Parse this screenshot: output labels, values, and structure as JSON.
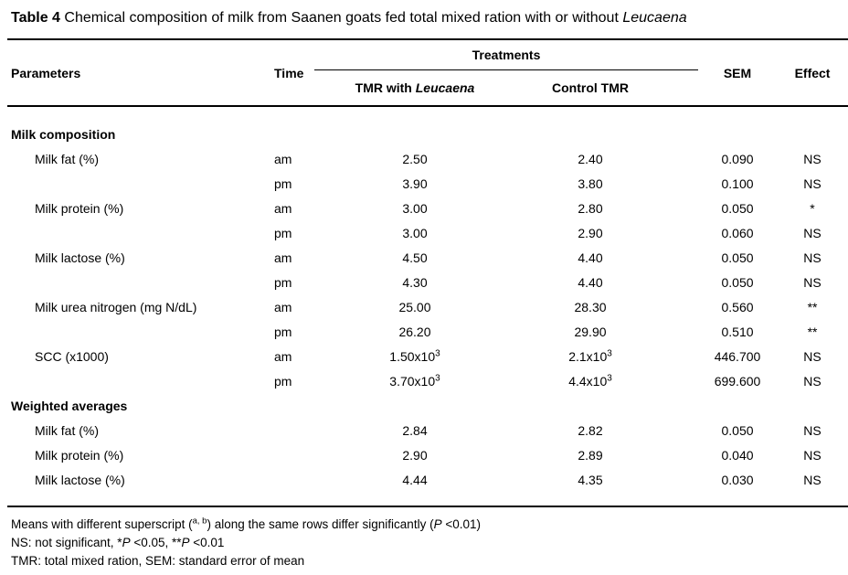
{
  "title": {
    "bold": "Table 4",
    "text": " Chemical composition of milk from Saanen goats fed total mixed ration with or without ",
    "italic": "Leucaena"
  },
  "header": {
    "parameters": "Parameters",
    "time": "Time",
    "treatments": "Treatments",
    "t1_prefix": "TMR with ",
    "t1_italic": "Leucaena",
    "t2": "Control TMR",
    "sem": "SEM",
    "effect": "Effect"
  },
  "sections": [
    {
      "name": "Milk composition",
      "rows": [
        {
          "param": "Milk fat (%)",
          "time": "am",
          "t1": "2.50",
          "t2": "2.40",
          "sem": "0.090",
          "effect": "NS"
        },
        {
          "param": "",
          "time": "pm",
          "t1": "3.90",
          "t2": "3.80",
          "sem": "0.100",
          "effect": "NS"
        },
        {
          "param": "Milk protein (%)",
          "time": "am",
          "t1": "3.00",
          "t2": "2.80",
          "sem": "0.050",
          "effect": "*"
        },
        {
          "param": "",
          "time": "pm",
          "t1": "3.00",
          "t2": "2.90",
          "sem": "0.060",
          "effect": "NS"
        },
        {
          "param": "Milk lactose (%)",
          "time": "am",
          "t1": "4.50",
          "t2": "4.40",
          "sem": "0.050",
          "effect": "NS"
        },
        {
          "param": "",
          "time": "pm",
          "t1": "4.30",
          "t2": "4.40",
          "sem": "0.050",
          "effect": "NS"
        },
        {
          "param": "Milk urea nitrogen (mg N/dL)",
          "time": "am",
          "t1": "25.00",
          "t2": "28.30",
          "sem": "0.560",
          "effect": "**"
        },
        {
          "param": "",
          "time": "pm",
          "t1": "26.20",
          "t2": "29.90",
          "sem": "0.510",
          "effect": "**"
        },
        {
          "param": "SCC (x1000)",
          "time": "am",
          "t1": "1.50x10",
          "t1sup": "3",
          "t2": "2.1x10",
          "t2sup": "3",
          "sem": "446.700",
          "effect": "NS"
        },
        {
          "param": "",
          "time": "pm",
          "t1": "3.70x10",
          "t1sup": "3",
          "t2": "4.4x10",
          "t2sup": "3",
          "sem": "699.600",
          "effect": "NS"
        }
      ]
    },
    {
      "name": "Weighted averages",
      "rows": [
        {
          "param": "Milk fat (%)",
          "time": "",
          "t1": "2.84",
          "t2": "2.82",
          "sem": "0.050",
          "effect": "NS"
        },
        {
          "param": "Milk protein (%)",
          "time": "",
          "t1": "2.90",
          "t2": "2.89",
          "sem": "0.040",
          "effect": "NS"
        },
        {
          "param": "Milk lactose (%)",
          "time": "",
          "t1": "4.44",
          "t2": "4.35",
          "sem": "0.030",
          "effect": "NS"
        }
      ]
    }
  ],
  "footnotes": {
    "line1": {
      "part1": "Means with different superscript (",
      "sup": "a, b",
      "part2": ") along the same rows differ significantly (",
      "pvar": "P",
      "part3": " <0.01)"
    },
    "line2": {
      "part1": "NS: not significant, *",
      "p1": "P",
      "part2": " <0.05, **",
      "p2": "P",
      "part3": " <0.01"
    },
    "line3": "TMR: total mixed ration, SEM: standard error of mean"
  }
}
